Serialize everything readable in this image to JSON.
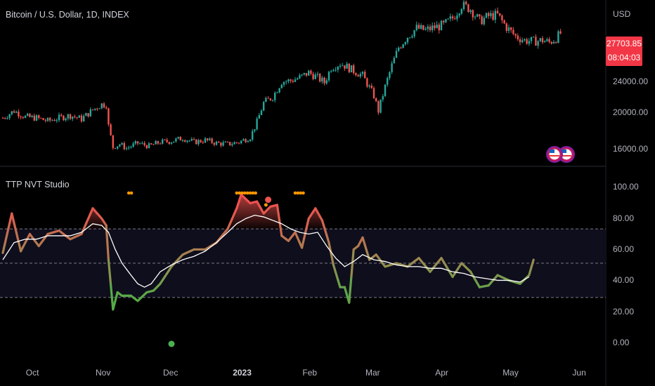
{
  "main_title": "Bitcoin / U.S. Dollar, 1D, INDEX",
  "currency": "USD",
  "price_tag": {
    "price": "27703.85",
    "countdown": "08:04:03"
  },
  "indicator_title": "TTP NVT Studio",
  "colors": {
    "bull": "#26a69a",
    "bear": "#ef5350",
    "tag": "#f23645",
    "dots": "#ff9800",
    "green": "#4caf50",
    "white": "#ffffff"
  },
  "x_ticks": [
    {
      "label": "Oct",
      "t": 14
    },
    {
      "label": "Nov",
      "t": 45
    },
    {
      "label": "Dec",
      "t": 75
    },
    {
      "label": "2023",
      "t": 106,
      "bold": true
    },
    {
      "label": "Feb",
      "t": 137
    },
    {
      "label": "Mar",
      "t": 165
    },
    {
      "label": "Apr",
      "t": 196
    },
    {
      "label": "May",
      "t": 226
    },
    {
      "label": "Jun",
      "t": 257
    }
  ],
  "chart_data": [
    {
      "type": "candlestick",
      "title": "Bitcoin / U.S. Dollar, 1D, INDEX",
      "y_ticks": [
        "24000.00",
        "20000.00",
        "16000.00"
      ],
      "ylim": [
        14500,
        31000
      ],
      "close_path": [
        [
          0,
          19300
        ],
        [
          5,
          20000
        ],
        [
          10,
          19400
        ],
        [
          15,
          19300
        ],
        [
          20,
          19000
        ],
        [
          25,
          19300
        ],
        [
          30,
          19550
        ],
        [
          35,
          19200
        ],
        [
          40,
          20100
        ],
        [
          44,
          20650
        ],
        [
          46,
          20600
        ],
        [
          47,
          18500
        ],
        [
          49,
          16400
        ],
        [
          52,
          16700
        ],
        [
          55,
          16300
        ],
        [
          60,
          16800
        ],
        [
          65,
          16500
        ],
        [
          70,
          16900
        ],
        [
          75,
          17000
        ],
        [
          80,
          17300
        ],
        [
          85,
          16900
        ],
        [
          90,
          17100
        ],
        [
          95,
          16800
        ],
        [
          100,
          16700
        ],
        [
          105,
          16900
        ],
        [
          110,
          17400
        ],
        [
          113,
          18900
        ],
        [
          116,
          20800
        ],
        [
          120,
          21400
        ],
        [
          124,
          22900
        ],
        [
          128,
          23000
        ],
        [
          132,
          23300
        ],
        [
          136,
          23800
        ],
        [
          140,
          23300
        ],
        [
          143,
          22800
        ],
        [
          146,
          24300
        ],
        [
          150,
          24700
        ],
        [
          152,
          24500
        ],
        [
          155,
          24100
        ],
        [
          160,
          23500
        ],
        [
          163,
          22300
        ],
        [
          165,
          21500
        ],
        [
          167,
          20000
        ],
        [
          170,
          22400
        ],
        [
          173,
          24500
        ],
        [
          176,
          26300
        ],
        [
          180,
          27400
        ],
        [
          184,
          28200
        ],
        [
          188,
          28000
        ],
        [
          192,
          28300
        ],
        [
          196,
          28500
        ],
        [
          200,
          29200
        ],
        [
          204,
          30500
        ],
        [
          208,
          30100
        ],
        [
          212,
          28900
        ],
        [
          216,
          29400
        ],
        [
          220,
          29500
        ],
        [
          224,
          28300
        ],
        [
          228,
          27400
        ],
        [
          232,
          27000
        ],
        [
          236,
          26900
        ],
        [
          240,
          27000
        ],
        [
          243,
          26800
        ],
        [
          246,
          27200
        ],
        [
          248,
          27703
        ]
      ],
      "events_count": 2
    },
    {
      "type": "line",
      "title": "TTP NVT Studio",
      "y_ticks": [
        "100.00",
        "80.00",
        "60.00",
        "40.00",
        "20.00",
        "0.00"
      ],
      "ylim": [
        -6.5,
        106.5
      ],
      "bands": [
        30,
        50,
        70
      ],
      "series": [
        {
          "values": [
            [
              0,
              56
            ],
            [
              4,
              79
            ],
            [
              8,
              57
            ],
            [
              12,
              67
            ],
            [
              16,
              60
            ],
            [
              20,
              67
            ],
            [
              25,
              69
            ],
            [
              30,
              64
            ],
            [
              35,
              67
            ],
            [
              40,
              82
            ],
            [
              44,
              76
            ],
            [
              46,
              72
            ],
            [
              47,
              52
            ],
            [
              49,
              23
            ],
            [
              51,
              33
            ],
            [
              53,
              31
            ],
            [
              57,
              31
            ],
            [
              60,
              28
            ],
            [
              64,
              33
            ],
            [
              67,
              34
            ],
            [
              70,
              38
            ],
            [
              75,
              48
            ],
            [
              80,
              55
            ],
            [
              85,
              58
            ],
            [
              90,
              58
            ],
            [
              95,
              62
            ],
            [
              100,
              70
            ],
            [
              104,
              82
            ],
            [
              106,
              90
            ],
            [
              110,
              85
            ],
            [
              113,
              86
            ],
            [
              116,
              79
            ],
            [
              119,
              83
            ],
            [
              122,
              84
            ],
            [
              124,
              66
            ],
            [
              127,
              63
            ],
            [
              130,
              68
            ],
            [
              133,
              59
            ],
            [
              136,
              76
            ],
            [
              139,
              82
            ],
            [
              142,
              75
            ],
            [
              145,
              62
            ],
            [
              147,
              49
            ],
            [
              150,
              36
            ],
            [
              152,
              36
            ],
            [
              154,
              27
            ],
            [
              156,
              58
            ],
            [
              158,
              60
            ],
            [
              160,
              65
            ],
            [
              163,
              52
            ],
            [
              166,
              55
            ],
            [
              170,
              48
            ],
            [
              175,
              50
            ],
            [
              180,
              48
            ],
            [
              185,
              53
            ],
            [
              190,
              45
            ],
            [
              195,
              53
            ],
            [
              200,
              42
            ],
            [
              204,
              50
            ],
            [
              208,
              45
            ],
            [
              212,
              36
            ],
            [
              216,
              37
            ],
            [
              220,
              43
            ],
            [
              225,
              40
            ],
            [
              230,
              38
            ],
            [
              234,
              43
            ],
            [
              236,
              52
            ]
          ]
        },
        {
          "values": [
            [
              0,
              52
            ],
            [
              5,
              62
            ],
            [
              10,
              64
            ],
            [
              15,
              64
            ],
            [
              20,
              66
            ],
            [
              25,
              66
            ],
            [
              30,
              66
            ],
            [
              35,
              68
            ],
            [
              40,
              73
            ],
            [
              44,
              72
            ],
            [
              47,
              68
            ],
            [
              50,
              58
            ],
            [
              53,
              50
            ],
            [
              57,
              43
            ],
            [
              60,
              38
            ],
            [
              63,
              36
            ],
            [
              66,
              38
            ],
            [
              70,
              45
            ],
            [
              75,
              49
            ],
            [
              80,
              52
            ],
            [
              85,
              54
            ],
            [
              90,
              57
            ],
            [
              95,
              62
            ],
            [
              100,
              68
            ],
            [
              104,
              73
            ],
            [
              108,
              76
            ],
            [
              112,
              78
            ],
            [
              116,
              77
            ],
            [
              120,
              75
            ],
            [
              124,
              73
            ],
            [
              128,
              70
            ],
            [
              132,
              68
            ],
            [
              136,
              67
            ],
            [
              140,
              68
            ],
            [
              144,
              60
            ],
            [
              148,
              53
            ],
            [
              152,
              48
            ],
            [
              156,
              51
            ],
            [
              160,
              55
            ],
            [
              165,
              52
            ],
            [
              170,
              51
            ],
            [
              175,
              49
            ],
            [
              180,
              48
            ],
            [
              185,
              48
            ],
            [
              190,
              47
            ],
            [
              195,
              47
            ],
            [
              200,
              45
            ],
            [
              205,
              44
            ],
            [
              210,
              42
            ],
            [
              215,
              41
            ],
            [
              220,
              40
            ],
            [
              225,
              40
            ],
            [
              230,
              39
            ],
            [
              234,
              42
            ]
          ]
        }
      ],
      "top_markers": [
        [
          56,
          58
        ],
        [
          104,
          113
        ],
        [
          130,
          134
        ]
      ],
      "red_markers": [
        [
          118,
          87
        ],
        [
          117,
          84
        ]
      ],
      "bottom_marker": [
        75,
        0
      ]
    }
  ]
}
